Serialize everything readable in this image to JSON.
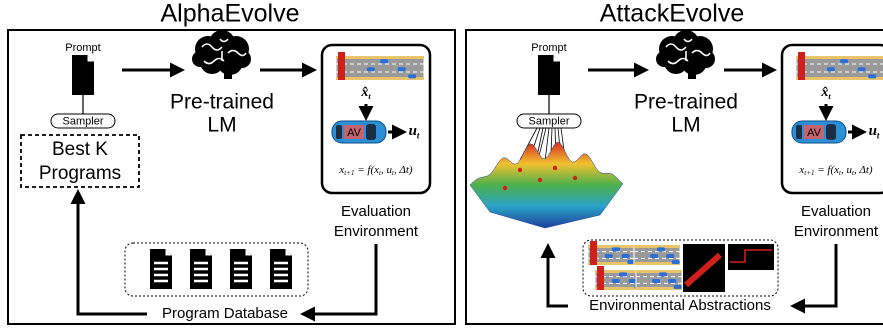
{
  "panels": [
    {
      "title": "AlphaEvolve",
      "prompt": "Prompt",
      "sampler": "Sampler",
      "model": [
        "Pre-trained",
        "LM"
      ],
      "state_estimate": [
        "x̂",
        "t"
      ],
      "control": [
        "u",
        "t"
      ],
      "vehicle": "AV",
      "equation": [
        "x",
        "t+1",
        " = f(x",
        "t",
        ", u",
        "t",
        ", Δt)"
      ],
      "environment": [
        "Evaluation",
        "Environment"
      ],
      "selection": [
        "Best K",
        "Programs"
      ],
      "database": "Program Database"
    },
    {
      "title": "AttackEvolve",
      "prompt": "Prompt",
      "sampler": "Sampler",
      "model": [
        "Pre-trained",
        "LM"
      ],
      "state_estimate": [
        "x̂",
        "t"
      ],
      "control": [
        "u",
        "t"
      ],
      "vehicle": "AV",
      "equation": [
        "x",
        "t+1",
        " = f(x",
        "t",
        ", u",
        "t",
        ", Δt)"
      ],
      "environment": [
        "Evaluation",
        "Environment"
      ],
      "database": "Environmental Abstractions"
    }
  ]
}
